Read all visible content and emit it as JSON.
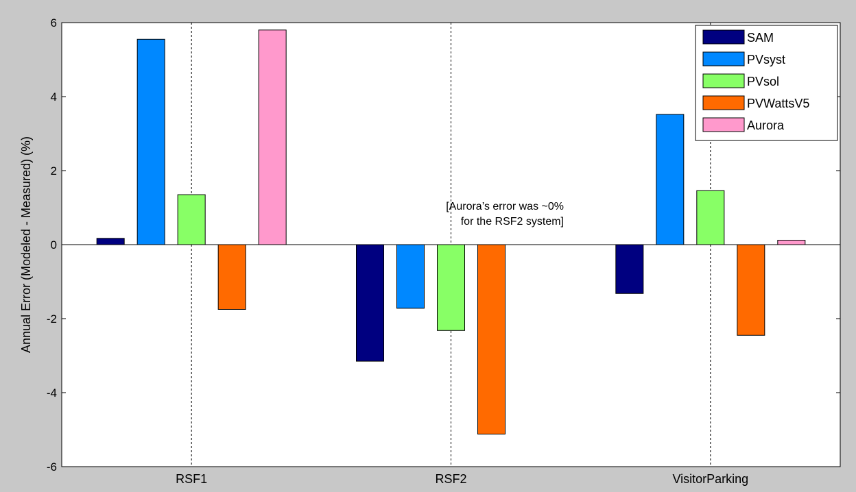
{
  "chart_data": {
    "type": "bar",
    "categories": [
      "RSF1",
      "RSF2",
      "VisitorParking"
    ],
    "series": [
      {
        "name": "SAM",
        "color": "#000080",
        "values": [
          0.17,
          -3.15,
          -1.32
        ]
      },
      {
        "name": "PVsyst",
        "color": "#0088ff",
        "values": [
          5.55,
          -1.72,
          3.52
        ]
      },
      {
        "name": "PVsol",
        "color": "#88ff66",
        "values": [
          1.35,
          -2.32,
          1.46
        ]
      },
      {
        "name": "PVWattsV5",
        "color": "#ff6a00",
        "values": [
          -1.75,
          -5.12,
          -2.45
        ]
      },
      {
        "name": "Aurora",
        "color": "#ff99cc",
        "values": [
          5.8,
          0,
          0.12
        ]
      }
    ],
    "ylabel": "Annual Error (Modeled - Measured) (%)",
    "ylim": [
      -6,
      6
    ],
    "yticks": [
      -6,
      -4,
      -2,
      0,
      2,
      4,
      6
    ],
    "annotation_lines": [
      "[Aurora’s error was ~0%",
      "for the RSF2 system]"
    ],
    "grid": "vertical dotted lines at categories",
    "legend_position": "top-right"
  }
}
